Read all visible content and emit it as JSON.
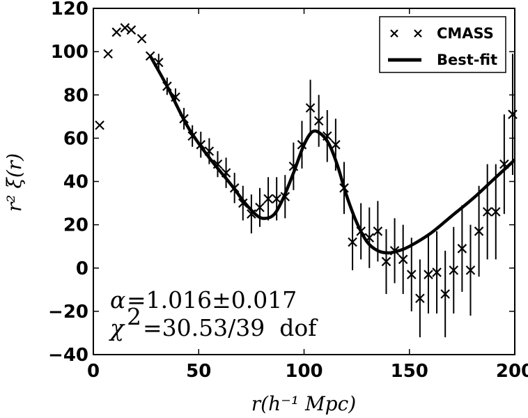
{
  "chart_data": {
    "type": "scatter",
    "title": "",
    "xlabel": "r(h⁻¹ Mpc)",
    "ylabel": "r² ξ(r)",
    "xlim": [
      0,
      200
    ],
    "ylim": [
      -40,
      120
    ],
    "xticks": [
      "0",
      "50",
      "100",
      "150",
      "200"
    ],
    "yticks": [
      "−40",
      "−20",
      "0",
      "20",
      "40",
      "60",
      "80",
      "100",
      "120"
    ],
    "xtick_values": [
      0,
      50,
      100,
      150,
      200
    ],
    "ytick_values": [
      -40,
      -20,
      0,
      20,
      40,
      60,
      80,
      100,
      120
    ],
    "grid": false,
    "legend_position": "top-right",
    "series": [
      {
        "name": "CMASS",
        "style": "x-markers-with-errorbars",
        "points": [
          {
            "x": 3,
            "y": 66,
            "err": 0
          },
          {
            "x": 7,
            "y": 99,
            "err": 0
          },
          {
            "x": 11,
            "y": 109,
            "err": 0
          },
          {
            "x": 15,
            "y": 111,
            "err": 0
          },
          {
            "x": 18,
            "y": 110,
            "err": 0
          },
          {
            "x": 23,
            "y": 106,
            "err": 0
          },
          {
            "x": 27,
            "y": 98,
            "err": 0
          },
          {
            "x": 31,
            "y": 95,
            "err": 4
          },
          {
            "x": 35,
            "y": 84,
            "err": 4
          },
          {
            "x": 39,
            "y": 79,
            "err": 4
          },
          {
            "x": 43,
            "y": 69,
            "err": 5
          },
          {
            "x": 47,
            "y": 61,
            "err": 5
          },
          {
            "x": 51,
            "y": 57,
            "err": 6
          },
          {
            "x": 55,
            "y": 54,
            "err": 6
          },
          {
            "x": 59,
            "y": 48,
            "err": 6
          },
          {
            "x": 63,
            "y": 44,
            "err": 7
          },
          {
            "x": 67,
            "y": 37,
            "err": 7
          },
          {
            "x": 71,
            "y": 30,
            "err": 8
          },
          {
            "x": 75,
            "y": 25,
            "err": 9
          },
          {
            "x": 79,
            "y": 28,
            "err": 9
          },
          {
            "x": 83,
            "y": 32,
            "err": 10
          },
          {
            "x": 87,
            "y": 32,
            "err": 10
          },
          {
            "x": 91,
            "y": 33,
            "err": 10
          },
          {
            "x": 95,
            "y": 47,
            "err": 11
          },
          {
            "x": 99,
            "y": 57,
            "err": 11
          },
          {
            "x": 103,
            "y": 74,
            "err": 13
          },
          {
            "x": 107,
            "y": 68,
            "err": 12
          },
          {
            "x": 111,
            "y": 61,
            "err": 12
          },
          {
            "x": 115,
            "y": 57,
            "err": 12
          },
          {
            "x": 119,
            "y": 37,
            "err": 12
          },
          {
            "x": 123,
            "y": 12,
            "err": 13
          },
          {
            "x": 127,
            "y": 17,
            "err": 13
          },
          {
            "x": 131,
            "y": 14,
            "err": 14
          },
          {
            "x": 135,
            "y": 17,
            "err": 14
          },
          {
            "x": 139,
            "y": 3,
            "err": 15
          },
          {
            "x": 143,
            "y": 8,
            "err": 15
          },
          {
            "x": 147,
            "y": 4,
            "err": 16
          },
          {
            "x": 151,
            "y": -3,
            "err": 17
          },
          {
            "x": 155,
            "y": -14,
            "err": 18
          },
          {
            "x": 159,
            "y": -3,
            "err": 18
          },
          {
            "x": 163,
            "y": -2,
            "err": 19
          },
          {
            "x": 167,
            "y": -12,
            "err": 20
          },
          {
            "x": 171,
            "y": -1,
            "err": 20
          },
          {
            "x": 175,
            "y": 9,
            "err": 20
          },
          {
            "x": 179,
            "y": -1,
            "err": 21
          },
          {
            "x": 183,
            "y": 17,
            "err": 21
          },
          {
            "x": 187,
            "y": 26,
            "err": 22
          },
          {
            "x": 191,
            "y": 26,
            "err": 22
          },
          {
            "x": 195,
            "y": 48,
            "err": 23
          },
          {
            "x": 199,
            "y": 71,
            "err": 28
          }
        ]
      },
      {
        "name": "Best-fit",
        "style": "line",
        "x": [
          27,
          35,
          45,
          55,
          65,
          72,
          78,
          82,
          86,
          90,
          95,
          100,
          104,
          108,
          112,
          116,
          120,
          125,
          130,
          135,
          140,
          145,
          150,
          160,
          170,
          180,
          190,
          200
        ],
        "y": [
          98,
          84,
          65,
          51,
          39,
          30,
          24,
          23,
          25,
          32,
          44,
          57,
          63,
          62,
          57,
          47,
          34,
          21,
          12,
          8,
          7,
          8,
          10,
          16,
          24,
          32,
          41,
          50
        ]
      }
    ],
    "annotations": [
      {
        "text_lhs": "α",
        "text_rhs": "=1.016±0.017"
      },
      {
        "text_lhs": "χ",
        "text_sup": "2",
        "text_rhs": "=30.53/39  dof"
      }
    ]
  }
}
